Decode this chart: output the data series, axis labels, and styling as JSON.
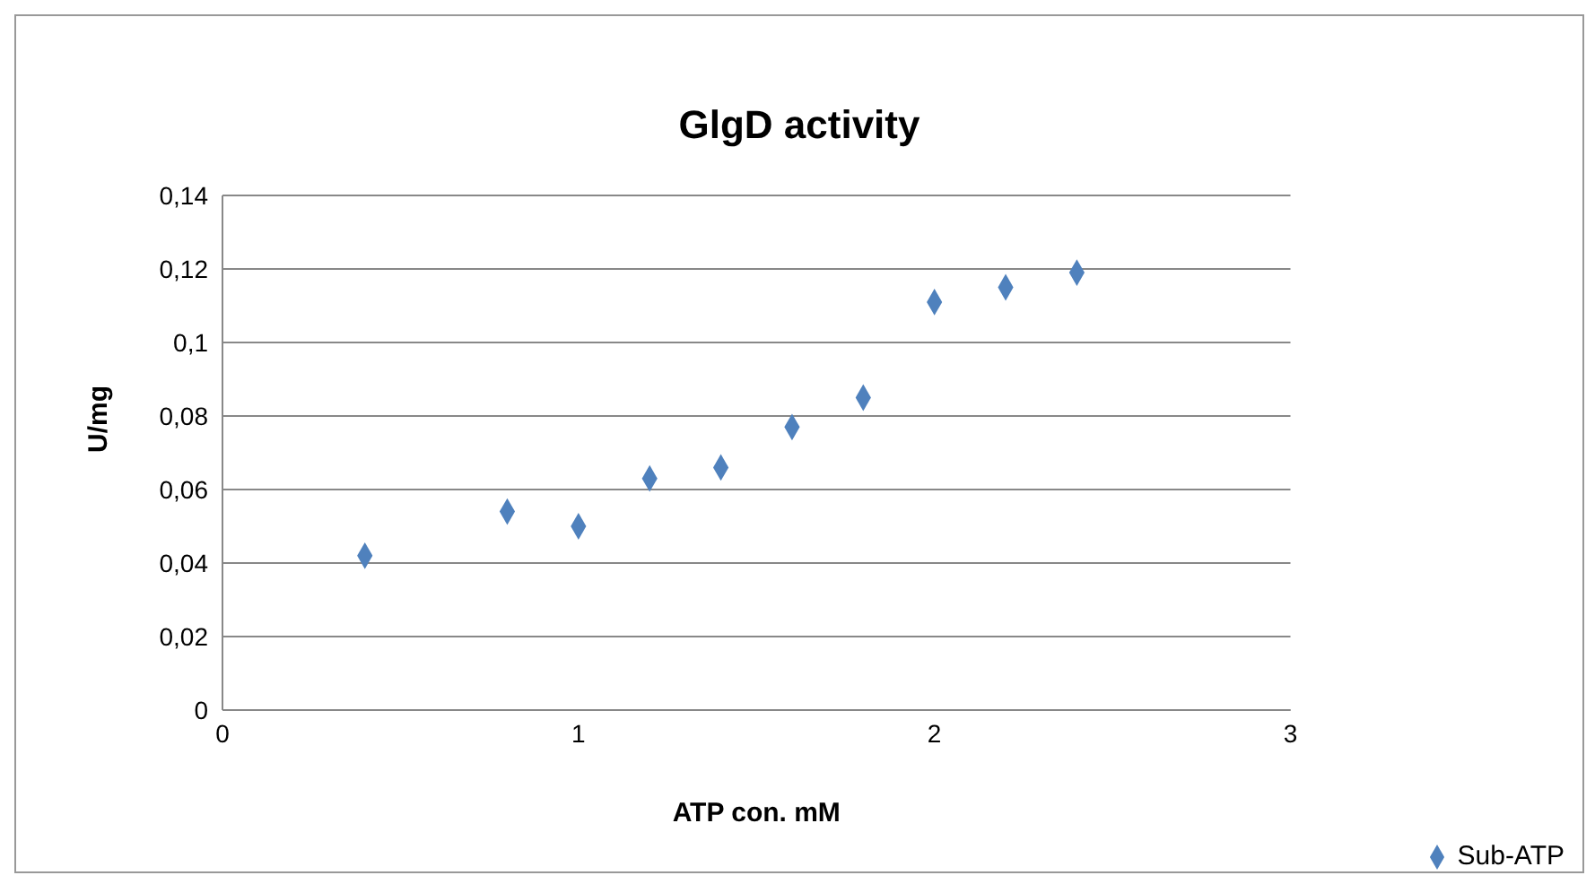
{
  "chart_data": {
    "type": "scatter",
    "title": "GlgD activity",
    "xlabel": "ATP con. mM",
    "ylabel": "U/mg",
    "x": [
      0.4,
      0.8,
      1.0,
      1.2,
      1.4,
      1.6,
      1.8,
      2.0,
      2.2,
      2.4
    ],
    "series": [
      {
        "name": "Sub-ATP",
        "color": "#4f81bd",
        "values": [
          0.042,
          0.054,
          0.05,
          0.063,
          0.066,
          0.077,
          0.085,
          0.111,
          0.115,
          0.119
        ]
      }
    ],
    "xlim": [
      0,
      3
    ],
    "xticks": [
      0,
      1,
      2,
      3
    ],
    "ylim": [
      0,
      0.14
    ],
    "yticks": [
      0,
      {
        "value": 0.02,
        "label": "0,02"
      },
      {
        "value": 0.04,
        "label": "0,04"
      },
      {
        "value": 0.06,
        "label": "0,06"
      },
      {
        "value": 0.08,
        "label": "0,08"
      },
      {
        "value": 0.1,
        "label": "0,1"
      },
      {
        "value": 0.12,
        "label": "0,12"
      },
      {
        "value": 0.14,
        "label": "0,14"
      }
    ],
    "grid": "y",
    "legend": "bottom right",
    "marker": "diamond"
  }
}
